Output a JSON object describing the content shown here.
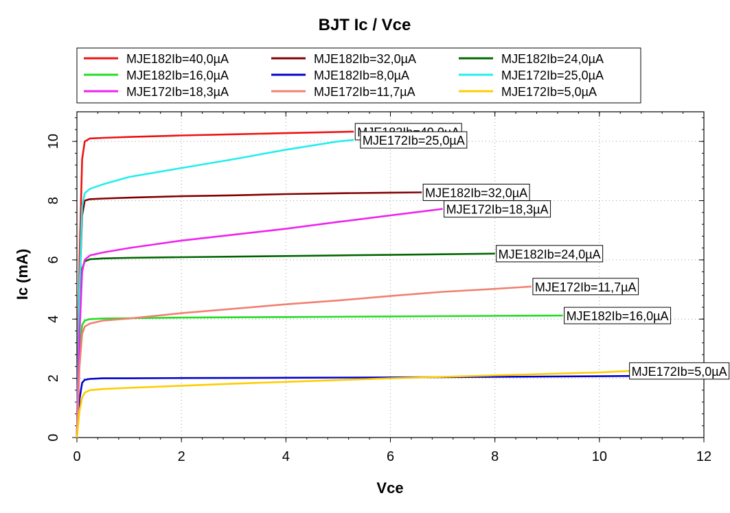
{
  "chart_data": {
    "type": "line",
    "title": "BJT Ic / Vce",
    "xlabel": "Vce",
    "ylabel": "Ic (mA)",
    "xlim": [
      0,
      12
    ],
    "ylim": [
      0,
      11
    ],
    "xticks": [
      0,
      2,
      4,
      6,
      8,
      10,
      12
    ],
    "yticks": [
      0,
      2,
      4,
      6,
      8,
      10
    ],
    "grid": true,
    "legend_position": "top",
    "series": [
      {
        "name": "MJE182Ib=40,0µA",
        "color": "#ee1111",
        "x": [
          0,
          0.05,
          0.1,
          0.15,
          0.25,
          0.5,
          1,
          2,
          3,
          4,
          5,
          5.3
        ],
        "y": [
          0,
          6,
          9.4,
          10,
          10.1,
          10.12,
          10.15,
          10.2,
          10.24,
          10.28,
          10.32,
          10.33
        ]
      },
      {
        "name": "MJE182Ib=32,0µA",
        "color": "#800000",
        "x": [
          0,
          0.05,
          0.1,
          0.15,
          0.25,
          0.5,
          1,
          2,
          3,
          4,
          5,
          6,
          6.6
        ],
        "y": [
          0,
          5,
          7.5,
          8,
          8.05,
          8.07,
          8.1,
          8.15,
          8.18,
          8.22,
          8.25,
          8.27,
          8.28
        ]
      },
      {
        "name": "MJE182Ib=24,0µA",
        "color": "#006600",
        "x": [
          0,
          0.05,
          0.1,
          0.15,
          0.25,
          0.5,
          1,
          2,
          3,
          4,
          5,
          6,
          7,
          8
        ],
        "y": [
          0,
          4,
          5.7,
          5.95,
          6.02,
          6.05,
          6.07,
          6.09,
          6.11,
          6.13,
          6.15,
          6.17,
          6.19,
          6.21
        ]
      },
      {
        "name": "MJE182Ib=16,0µA",
        "color": "#22dd22",
        "x": [
          0,
          0.05,
          0.1,
          0.15,
          0.25,
          0.5,
          1,
          2,
          4,
          6,
          8,
          9.3
        ],
        "y": [
          0,
          2.8,
          3.8,
          3.95,
          4.0,
          4.02,
          4.03,
          4.05,
          4.07,
          4.09,
          4.11,
          4.12
        ]
      },
      {
        "name": "MJE182Ib=8,0µA",
        "color": "#0000cc",
        "x": [
          0,
          0.05,
          0.1,
          0.15,
          0.25,
          0.5,
          1,
          2,
          4,
          6,
          8,
          10,
          10.6
        ],
        "y": [
          0,
          1.3,
          1.85,
          1.95,
          1.98,
          2.0,
          2.0,
          2.01,
          2.02,
          2.03,
          2.05,
          2.07,
          2.08
        ]
      },
      {
        "name": "MJE172Ib=25,0µA",
        "color": "#22eeee",
        "x": [
          0,
          0.05,
          0.1,
          0.15,
          0.25,
          0.5,
          1,
          2,
          3,
          4,
          5,
          5.3
        ],
        "y": [
          0,
          5,
          7.8,
          8.25,
          8.4,
          8.55,
          8.8,
          9.1,
          9.4,
          9.72,
          10.0,
          10.05
        ]
      },
      {
        "name": "MJE172Ib=18,3µA",
        "color": "#ee22ee",
        "x": [
          0,
          0.05,
          0.1,
          0.15,
          0.25,
          0.5,
          1,
          2,
          3,
          4,
          5,
          6,
          7
        ],
        "y": [
          0,
          3.5,
          5.6,
          6.0,
          6.15,
          6.25,
          6.4,
          6.65,
          6.85,
          7.05,
          7.28,
          7.5,
          7.72
        ]
      },
      {
        "name": "MJE172Ib=11,7µA",
        "color": "#f08070",
        "x": [
          0,
          0.05,
          0.1,
          0.15,
          0.25,
          0.5,
          1,
          2,
          3,
          4,
          5,
          6,
          7,
          8,
          8.7
        ],
        "y": [
          0,
          2.4,
          3.5,
          3.75,
          3.85,
          3.95,
          4.02,
          4.2,
          4.35,
          4.5,
          4.63,
          4.78,
          4.92,
          5.02,
          5.1
        ]
      },
      {
        "name": "MJE172Ib=5,0µA",
        "color": "#ffcc00",
        "x": [
          0,
          0.05,
          0.1,
          0.15,
          0.25,
          0.5,
          1,
          2,
          3,
          4,
          5,
          6,
          7,
          8,
          9,
          10,
          10.6
        ],
        "y": [
          0,
          0.9,
          1.35,
          1.52,
          1.6,
          1.64,
          1.68,
          1.75,
          1.82,
          1.88,
          1.94,
          2.0,
          2.05,
          2.1,
          2.15,
          2.2,
          2.25
        ]
      }
    ],
    "annotations": [
      {
        "text": "MJE182Ib=40,0µA",
        "x": 5.3,
        "y": 10.33
      },
      {
        "text": "MJE172Ib=25,0µA",
        "x": 5.4,
        "y": 10.05
      },
      {
        "text": "MJE182Ib=32,0µA",
        "x": 6.6,
        "y": 8.28
      },
      {
        "text": "MJE172Ib=18,3µA",
        "x": 7.0,
        "y": 7.72
      },
      {
        "text": "MJE182Ib=24,0µA",
        "x": 8.0,
        "y": 6.21
      },
      {
        "text": "MJE172Ib=11,7µA",
        "x": 8.7,
        "y": 5.1
      },
      {
        "text": "MJE182Ib=16,0µA",
        "x": 9.3,
        "y": 4.12
      },
      {
        "text": "MJE172Ib=5,0µA",
        "x": 10.55,
        "y": 2.25
      }
    ]
  }
}
